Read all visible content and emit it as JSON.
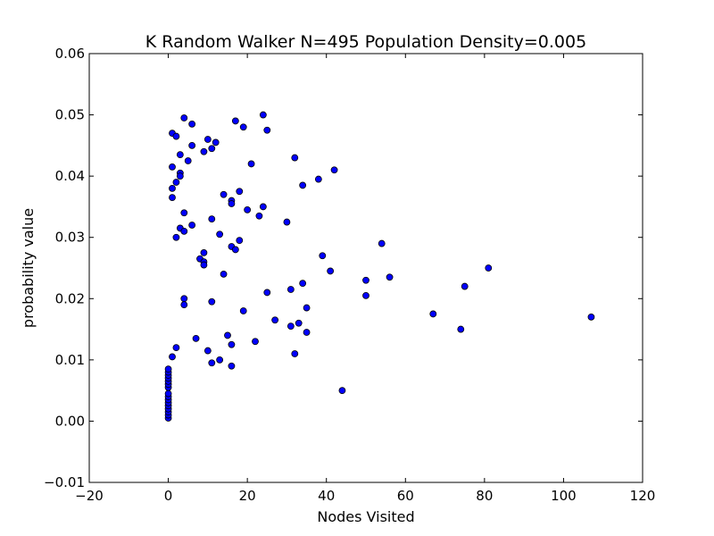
{
  "chart_data": {
    "type": "scatter",
    "title": "K Random Walker N=495 Population Density=0.005",
    "xlabel": "Nodes Visited",
    "ylabel": "probability value",
    "xlim": [
      -20,
      120
    ],
    "ylim": [
      -0.01,
      0.06
    ],
    "xticks": [
      -20,
      0,
      20,
      40,
      60,
      80,
      100,
      120
    ],
    "yticks": [
      -0.01,
      0.0,
      0.01,
      0.02,
      0.03,
      0.04,
      0.05,
      0.06
    ],
    "xtick_labels": [
      "−20",
      "0",
      "20",
      "40",
      "60",
      "80",
      "100",
      "120"
    ],
    "ytick_labels": [
      "−0.01",
      "0.00",
      "0.01",
      "0.02",
      "0.03",
      "0.04",
      "0.05",
      "0.06"
    ],
    "grid": false,
    "marker_color": "#0000ff",
    "marker_edge": "#000000",
    "points": [
      {
        "x": 0,
        "y": 0.0005
      },
      {
        "x": 0,
        "y": 0.001
      },
      {
        "x": 0,
        "y": 0.0015
      },
      {
        "x": 0,
        "y": 0.002
      },
      {
        "x": 0,
        "y": 0.0025
      },
      {
        "x": 0,
        "y": 0.003
      },
      {
        "x": 0,
        "y": 0.0035
      },
      {
        "x": 0,
        "y": 0.004
      },
      {
        "x": 0,
        "y": 0.0045
      },
      {
        "x": 0,
        "y": 0.0055
      },
      {
        "x": 0,
        "y": 0.006
      },
      {
        "x": 0,
        "y": 0.0065
      },
      {
        "x": 0,
        "y": 0.007
      },
      {
        "x": 0,
        "y": 0.0075
      },
      {
        "x": 0,
        "y": 0.008
      },
      {
        "x": 0,
        "y": 0.0085
      },
      {
        "x": 1,
        "y": 0.0105
      },
      {
        "x": 2,
        "y": 0.012
      },
      {
        "x": 1,
        "y": 0.047
      },
      {
        "x": 2,
        "y": 0.0465
      },
      {
        "x": 1,
        "y": 0.0415
      },
      {
        "x": 2,
        "y": 0.039
      },
      {
        "x": 1,
        "y": 0.038
      },
      {
        "x": 1,
        "y": 0.0365
      },
      {
        "x": 3,
        "y": 0.0435
      },
      {
        "x": 3,
        "y": 0.0405
      },
      {
        "x": 3,
        "y": 0.04
      },
      {
        "x": 4,
        "y": 0.0495
      },
      {
        "x": 6,
        "y": 0.0485
      },
      {
        "x": 6,
        "y": 0.045
      },
      {
        "x": 5,
        "y": 0.0425
      },
      {
        "x": 4,
        "y": 0.034
      },
      {
        "x": 3,
        "y": 0.0315
      },
      {
        "x": 4,
        "y": 0.031
      },
      {
        "x": 2,
        "y": 0.03
      },
      {
        "x": 6,
        "y": 0.032
      },
      {
        "x": 4,
        "y": 0.02
      },
      {
        "x": 4,
        "y": 0.019
      },
      {
        "x": 7,
        "y": 0.0135
      },
      {
        "x": 8,
        "y": 0.0265
      },
      {
        "x": 9,
        "y": 0.0275
      },
      {
        "x": 9,
        "y": 0.026
      },
      {
        "x": 9,
        "y": 0.0255
      },
      {
        "x": 9,
        "y": 0.044
      },
      {
        "x": 10,
        "y": 0.046
      },
      {
        "x": 11,
        "y": 0.0445
      },
      {
        "x": 12,
        "y": 0.0455
      },
      {
        "x": 11,
        "y": 0.033
      },
      {
        "x": 13,
        "y": 0.0305
      },
      {
        "x": 11,
        "y": 0.0195
      },
      {
        "x": 10,
        "y": 0.0115
      },
      {
        "x": 11,
        "y": 0.0095
      },
      {
        "x": 13,
        "y": 0.01
      },
      {
        "x": 14,
        "y": 0.037
      },
      {
        "x": 16,
        "y": 0.036
      },
      {
        "x": 16,
        "y": 0.0355
      },
      {
        "x": 14,
        "y": 0.024
      },
      {
        "x": 16,
        "y": 0.0285
      },
      {
        "x": 17,
        "y": 0.028
      },
      {
        "x": 15,
        "y": 0.014
      },
      {
        "x": 16,
        "y": 0.0125
      },
      {
        "x": 16,
        "y": 0.009
      },
      {
        "x": 17,
        "y": 0.049
      },
      {
        "x": 19,
        "y": 0.048
      },
      {
        "x": 18,
        "y": 0.0375
      },
      {
        "x": 18,
        "y": 0.0295
      },
      {
        "x": 20,
        "y": 0.0345
      },
      {
        "x": 21,
        "y": 0.042
      },
      {
        "x": 19,
        "y": 0.018
      },
      {
        "x": 24,
        "y": 0.05
      },
      {
        "x": 25,
        "y": 0.0475
      },
      {
        "x": 24,
        "y": 0.035
      },
      {
        "x": 23,
        "y": 0.0335
      },
      {
        "x": 22,
        "y": 0.013
      },
      {
        "x": 25,
        "y": 0.021
      },
      {
        "x": 27,
        "y": 0.0165
      },
      {
        "x": 30,
        "y": 0.0325
      },
      {
        "x": 32,
        "y": 0.043
      },
      {
        "x": 31,
        "y": 0.0215
      },
      {
        "x": 31,
        "y": 0.0155
      },
      {
        "x": 33,
        "y": 0.016
      },
      {
        "x": 32,
        "y": 0.011
      },
      {
        "x": 34,
        "y": 0.0385
      },
      {
        "x": 34,
        "y": 0.0225
      },
      {
        "x": 35,
        "y": 0.0185
      },
      {
        "x": 35,
        "y": 0.0145
      },
      {
        "x": 38,
        "y": 0.0395
      },
      {
        "x": 42,
        "y": 0.041
      },
      {
        "x": 39,
        "y": 0.027
      },
      {
        "x": 41,
        "y": 0.0245
      },
      {
        "x": 44,
        "y": 0.005
      },
      {
        "x": 50,
        "y": 0.023
      },
      {
        "x": 50,
        "y": 0.0205
      },
      {
        "x": 54,
        "y": 0.029
      },
      {
        "x": 56,
        "y": 0.0235
      },
      {
        "x": 67,
        "y": 0.0175
      },
      {
        "x": 74,
        "y": 0.015
      },
      {
        "x": 75,
        "y": 0.022
      },
      {
        "x": 81,
        "y": 0.025
      },
      {
        "x": 107,
        "y": 0.017
      }
    ]
  }
}
